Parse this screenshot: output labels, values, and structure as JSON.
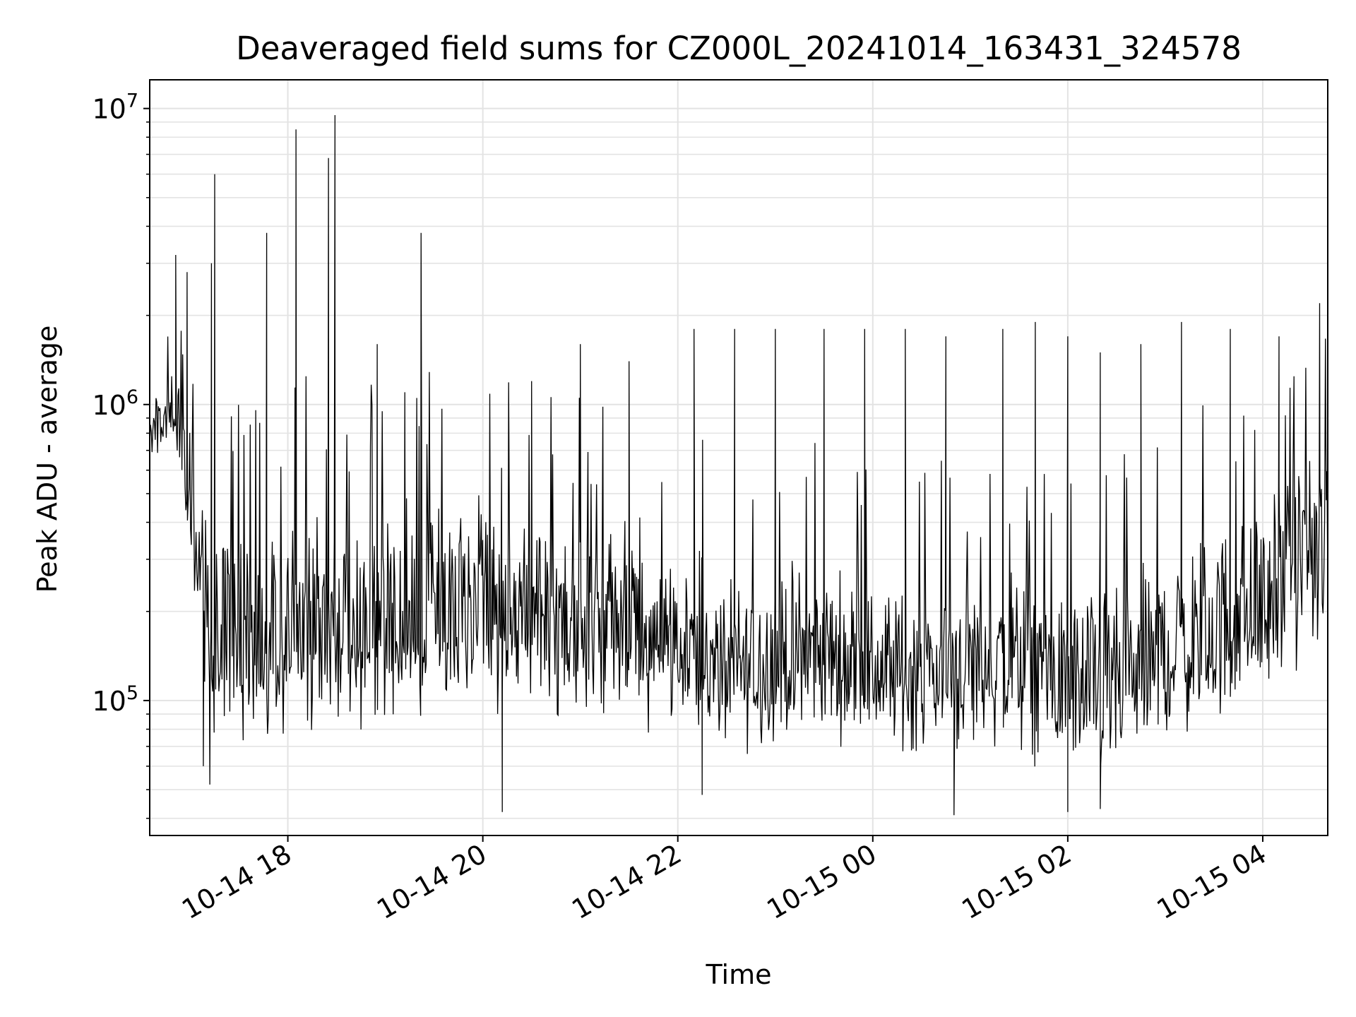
{
  "chart_data": {
    "type": "line",
    "title": "Deaveraged field sums for CZ000L_20241014_163431_324578",
    "xlabel": "Time",
    "ylabel": "Peak ADU - average",
    "yscale": "log",
    "xlim": [
      "2024-10-14 16:35",
      "2024-10-15 04:40"
    ],
    "ylim": [
      35000,
      12500000
    ],
    "x_ticks": [
      {
        "t": "2024-10-14 18:00",
        "label": "10-14 18"
      },
      {
        "t": "2024-10-14 20:00",
        "label": "10-14 20"
      },
      {
        "t": "2024-10-14 22:00",
        "label": "10-14 22"
      },
      {
        "t": "2024-10-15 00:00",
        "label": "10-15 00"
      },
      {
        "t": "2024-10-15 02:00",
        "label": "10-15 02"
      },
      {
        "t": "2024-10-15 04:00",
        "label": "10-15 04"
      }
    ],
    "y_ticks": [
      {
        "v": 100000,
        "base": "10",
        "exp": "5"
      },
      {
        "v": 1000000,
        "base": "10",
        "exp": "6"
      },
      {
        "v": 10000000,
        "base": "10",
        "exp": "7"
      }
    ],
    "grid": true,
    "line_color": "#000000",
    "envelope": [
      {
        "t": "2024-10-14 16:35",
        "low": 600000,
        "high": 1000000
      },
      {
        "t": "2024-10-14 16:50",
        "low": 650000,
        "high": 1600000
      },
      {
        "t": "2024-10-14 16:58",
        "low": 300000,
        "high": 1000000
      },
      {
        "t": "2024-10-14 17:05",
        "low": 130000,
        "high": 800000
      },
      {
        "t": "2024-10-14 17:15",
        "low": 65000,
        "high": 500000
      },
      {
        "t": "2024-10-14 17:30",
        "low": 60000,
        "high": 450000
      },
      {
        "t": "2024-10-14 18:00",
        "low": 60000,
        "high": 550000
      },
      {
        "t": "2024-10-14 18:30",
        "low": 65000,
        "high": 600000
      },
      {
        "t": "2024-10-14 19:00",
        "low": 65000,
        "high": 550000
      },
      {
        "t": "2024-10-14 19:30",
        "low": 70000,
        "high": 600000
      },
      {
        "t": "2024-10-14 20:00",
        "low": 80000,
        "high": 600000
      },
      {
        "t": "2024-10-14 20:30",
        "low": 70000,
        "high": 550000
      },
      {
        "t": "2024-10-14 21:00",
        "low": 65000,
        "high": 500000
      },
      {
        "t": "2024-10-14 21:30",
        "low": 70000,
        "high": 500000
      },
      {
        "t": "2024-10-14 22:00",
        "low": 75000,
        "high": 400000
      },
      {
        "t": "2024-10-14 22:30",
        "low": 55000,
        "high": 300000
      },
      {
        "t": "2024-10-14 23:00",
        "low": 60000,
        "high": 350000
      },
      {
        "t": "2024-10-14 23:30",
        "low": 65000,
        "high": 350000
      },
      {
        "t": "2024-10-15 00:00",
        "low": 60000,
        "high": 300000
      },
      {
        "t": "2024-10-15 00:30",
        "low": 55000,
        "high": 300000
      },
      {
        "t": "2024-10-15 01:00",
        "low": 55000,
        "high": 350000
      },
      {
        "t": "2024-10-15 01:30",
        "low": 55000,
        "high": 350000
      },
      {
        "t": "2024-10-15 02:00",
        "low": 48000,
        "high": 300000
      },
      {
        "t": "2024-10-15 02:30",
        "low": 45000,
        "high": 300000
      },
      {
        "t": "2024-10-15 03:00",
        "low": 60000,
        "high": 400000
      },
      {
        "t": "2024-10-15 03:30",
        "low": 65000,
        "high": 500000
      },
      {
        "t": "2024-10-15 04:00",
        "low": 80000,
        "high": 600000
      },
      {
        "t": "2024-10-15 04:30",
        "low": 120000,
        "high": 900000
      },
      {
        "t": "2024-10-15 04:40",
        "low": 100000,
        "high": 1000000
      }
    ],
    "spikes": [
      {
        "t": "2024-10-14 16:51",
        "v": 3200000
      },
      {
        "t": "2024-10-14 16:58",
        "v": 2800000
      },
      {
        "t": "2024-10-14 17:13",
        "v": 3000000
      },
      {
        "t": "2024-10-14 17:15",
        "v": 6000000
      },
      {
        "t": "2024-10-14 17:47",
        "v": 3800000
      },
      {
        "t": "2024-10-14 18:05",
        "v": 8500000
      },
      {
        "t": "2024-10-14 18:25",
        "v": 6800000
      },
      {
        "t": "2024-10-14 18:29",
        "v": 9500000
      },
      {
        "t": "2024-10-14 18:55",
        "v": 1600000
      },
      {
        "t": "2024-10-14 19:12",
        "v": 1100000
      },
      {
        "t": "2024-10-14 19:22",
        "v": 3800000
      },
      {
        "t": "2024-10-14 20:30",
        "v": 1200000
      },
      {
        "t": "2024-10-14 21:00",
        "v": 1600000
      },
      {
        "t": "2024-10-14 21:30",
        "v": 1400000
      },
      {
        "t": "2024-10-14 22:10",
        "v": 1800000
      },
      {
        "t": "2024-10-14 22:35",
        "v": 1800000
      },
      {
        "t": "2024-10-14 23:00",
        "v": 1800000
      },
      {
        "t": "2024-10-14 23:30",
        "v": 1800000
      },
      {
        "t": "2024-10-14 23:55",
        "v": 1800000
      },
      {
        "t": "2024-10-15 00:20",
        "v": 1800000
      },
      {
        "t": "2024-10-15 00:45",
        "v": 1700000
      },
      {
        "t": "2024-10-15 01:20",
        "v": 1800000
      },
      {
        "t": "2024-10-15 01:40",
        "v": 1900000
      },
      {
        "t": "2024-10-15 02:00",
        "v": 1700000
      },
      {
        "t": "2024-10-15 02:20",
        "v": 1500000
      },
      {
        "t": "2024-10-15 02:45",
        "v": 1600000
      },
      {
        "t": "2024-10-15 03:10",
        "v": 1900000
      },
      {
        "t": "2024-10-15 03:40",
        "v": 1800000
      },
      {
        "t": "2024-10-15 04:10",
        "v": 1700000
      },
      {
        "t": "2024-10-15 04:35",
        "v": 2200000
      }
    ],
    "dips": [
      {
        "t": "2024-10-14 17:08",
        "v": 60000
      },
      {
        "t": "2024-10-14 17:12",
        "v": 52000
      },
      {
        "t": "2024-10-14 20:12",
        "v": 42000
      },
      {
        "t": "2024-10-14 22:15",
        "v": 48000
      },
      {
        "t": "2024-10-15 00:50",
        "v": 41000
      },
      {
        "t": "2024-10-15 02:00",
        "v": 42000
      },
      {
        "t": "2024-10-15 02:20",
        "v": 43000
      }
    ]
  }
}
